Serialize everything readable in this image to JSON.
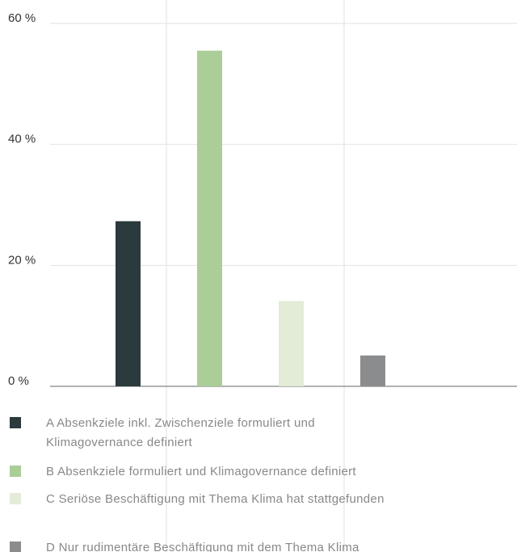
{
  "chart_data": {
    "type": "bar",
    "categories": [
      "A Absenkziele inkl. Zwischenziele formuliert und Klimagovernance definiert",
      "B Absenkziele formuliert und Klimagovernance definiert",
      "C Seriöse Beschäftigung mit Thema Klima hat stattgefunden",
      "D Nur rudimentäre Beschäftigung mit dem Thema Klima"
    ],
    "values": [
      27.3,
      55.5,
      14.1,
      5.1
    ],
    "colors": [
      "#2b3a3c",
      "#abcd98",
      "#e2ecd6",
      "#8a8c8e"
    ],
    "ylim": [
      0,
      60
    ],
    "yticks": [
      {
        "value": 0,
        "label": "0 %"
      },
      {
        "value": 20,
        "label": "20 %"
      },
      {
        "value": 40,
        "label": "40 %"
      },
      {
        "value": 60,
        "label": "60 %"
      }
    ],
    "grid": true
  }
}
